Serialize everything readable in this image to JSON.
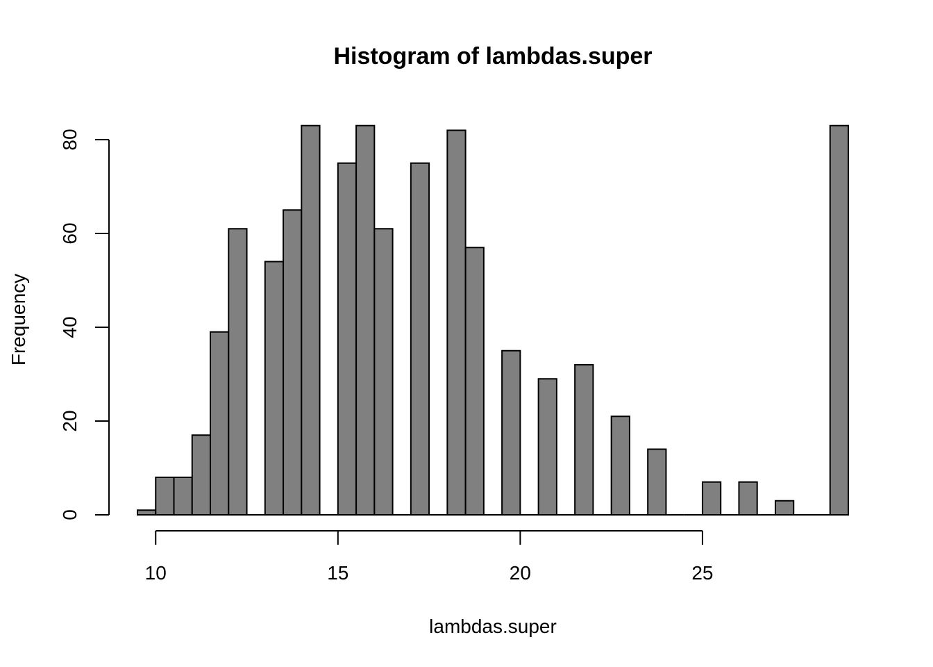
{
  "chart_data": {
    "type": "bar",
    "title": "Histogram of lambdas.super",
    "xlabel": "lambdas.super",
    "ylabel": "Frequency",
    "xlim": [
      9.5,
      29
    ],
    "ylim": [
      0,
      83
    ],
    "x_ticks": [
      10,
      15,
      20,
      25
    ],
    "y_ticks": [
      0,
      20,
      40,
      60,
      80
    ],
    "bin_width": 0.5,
    "bins": [
      {
        "start": 9.5,
        "end": 10.0,
        "value": 1
      },
      {
        "start": 10.0,
        "end": 10.5,
        "value": 8
      },
      {
        "start": 10.5,
        "end": 11.0,
        "value": 8
      },
      {
        "start": 11.0,
        "end": 11.5,
        "value": 17
      },
      {
        "start": 11.5,
        "end": 12.0,
        "value": 39
      },
      {
        "start": 12.0,
        "end": 12.5,
        "value": 61
      },
      {
        "start": 12.5,
        "end": 13.0,
        "value": 0
      },
      {
        "start": 13.0,
        "end": 13.5,
        "value": 54
      },
      {
        "start": 13.5,
        "end": 14.0,
        "value": 65
      },
      {
        "start": 14.0,
        "end": 14.5,
        "value": 83
      },
      {
        "start": 14.5,
        "end": 15.0,
        "value": 0
      },
      {
        "start": 15.0,
        "end": 15.5,
        "value": 75
      },
      {
        "start": 15.5,
        "end": 16.0,
        "value": 83
      },
      {
        "start": 16.0,
        "end": 16.5,
        "value": 61
      },
      {
        "start": 16.5,
        "end": 17.0,
        "value": 0
      },
      {
        "start": 17.0,
        "end": 17.5,
        "value": 75
      },
      {
        "start": 17.5,
        "end": 18.0,
        "value": 0
      },
      {
        "start": 18.0,
        "end": 18.5,
        "value": 82
      },
      {
        "start": 18.5,
        "end": 19.0,
        "value": 57
      },
      {
        "start": 19.0,
        "end": 19.5,
        "value": 0
      },
      {
        "start": 19.5,
        "end": 20.0,
        "value": 35
      },
      {
        "start": 20.0,
        "end": 20.5,
        "value": 0
      },
      {
        "start": 20.5,
        "end": 21.0,
        "value": 29
      },
      {
        "start": 21.0,
        "end": 21.5,
        "value": 0
      },
      {
        "start": 21.5,
        "end": 22.0,
        "value": 32
      },
      {
        "start": 22.0,
        "end": 22.5,
        "value": 0
      },
      {
        "start": 22.5,
        "end": 23.0,
        "value": 21
      },
      {
        "start": 23.0,
        "end": 23.5,
        "value": 0
      },
      {
        "start": 23.5,
        "end": 24.0,
        "value": 14
      },
      {
        "start": 24.0,
        "end": 24.5,
        "value": 0
      },
      {
        "start": 24.5,
        "end": 25.0,
        "value": 0
      },
      {
        "start": 25.0,
        "end": 25.5,
        "value": 7
      },
      {
        "start": 25.5,
        "end": 26.0,
        "value": 0
      },
      {
        "start": 26.0,
        "end": 26.5,
        "value": 7
      },
      {
        "start": 26.5,
        "end": 27.0,
        "value": 0
      },
      {
        "start": 27.0,
        "end": 27.5,
        "value": 3
      },
      {
        "start": 27.5,
        "end": 28.0,
        "value": 0
      },
      {
        "start": 28.0,
        "end": 28.5,
        "value": 0
      },
      {
        "start": 28.5,
        "end": 29.0,
        "value": 83
      }
    ],
    "bar_color": "#808080",
    "bar_border_color": "#000000",
    "grid": false,
    "legend": "none"
  }
}
